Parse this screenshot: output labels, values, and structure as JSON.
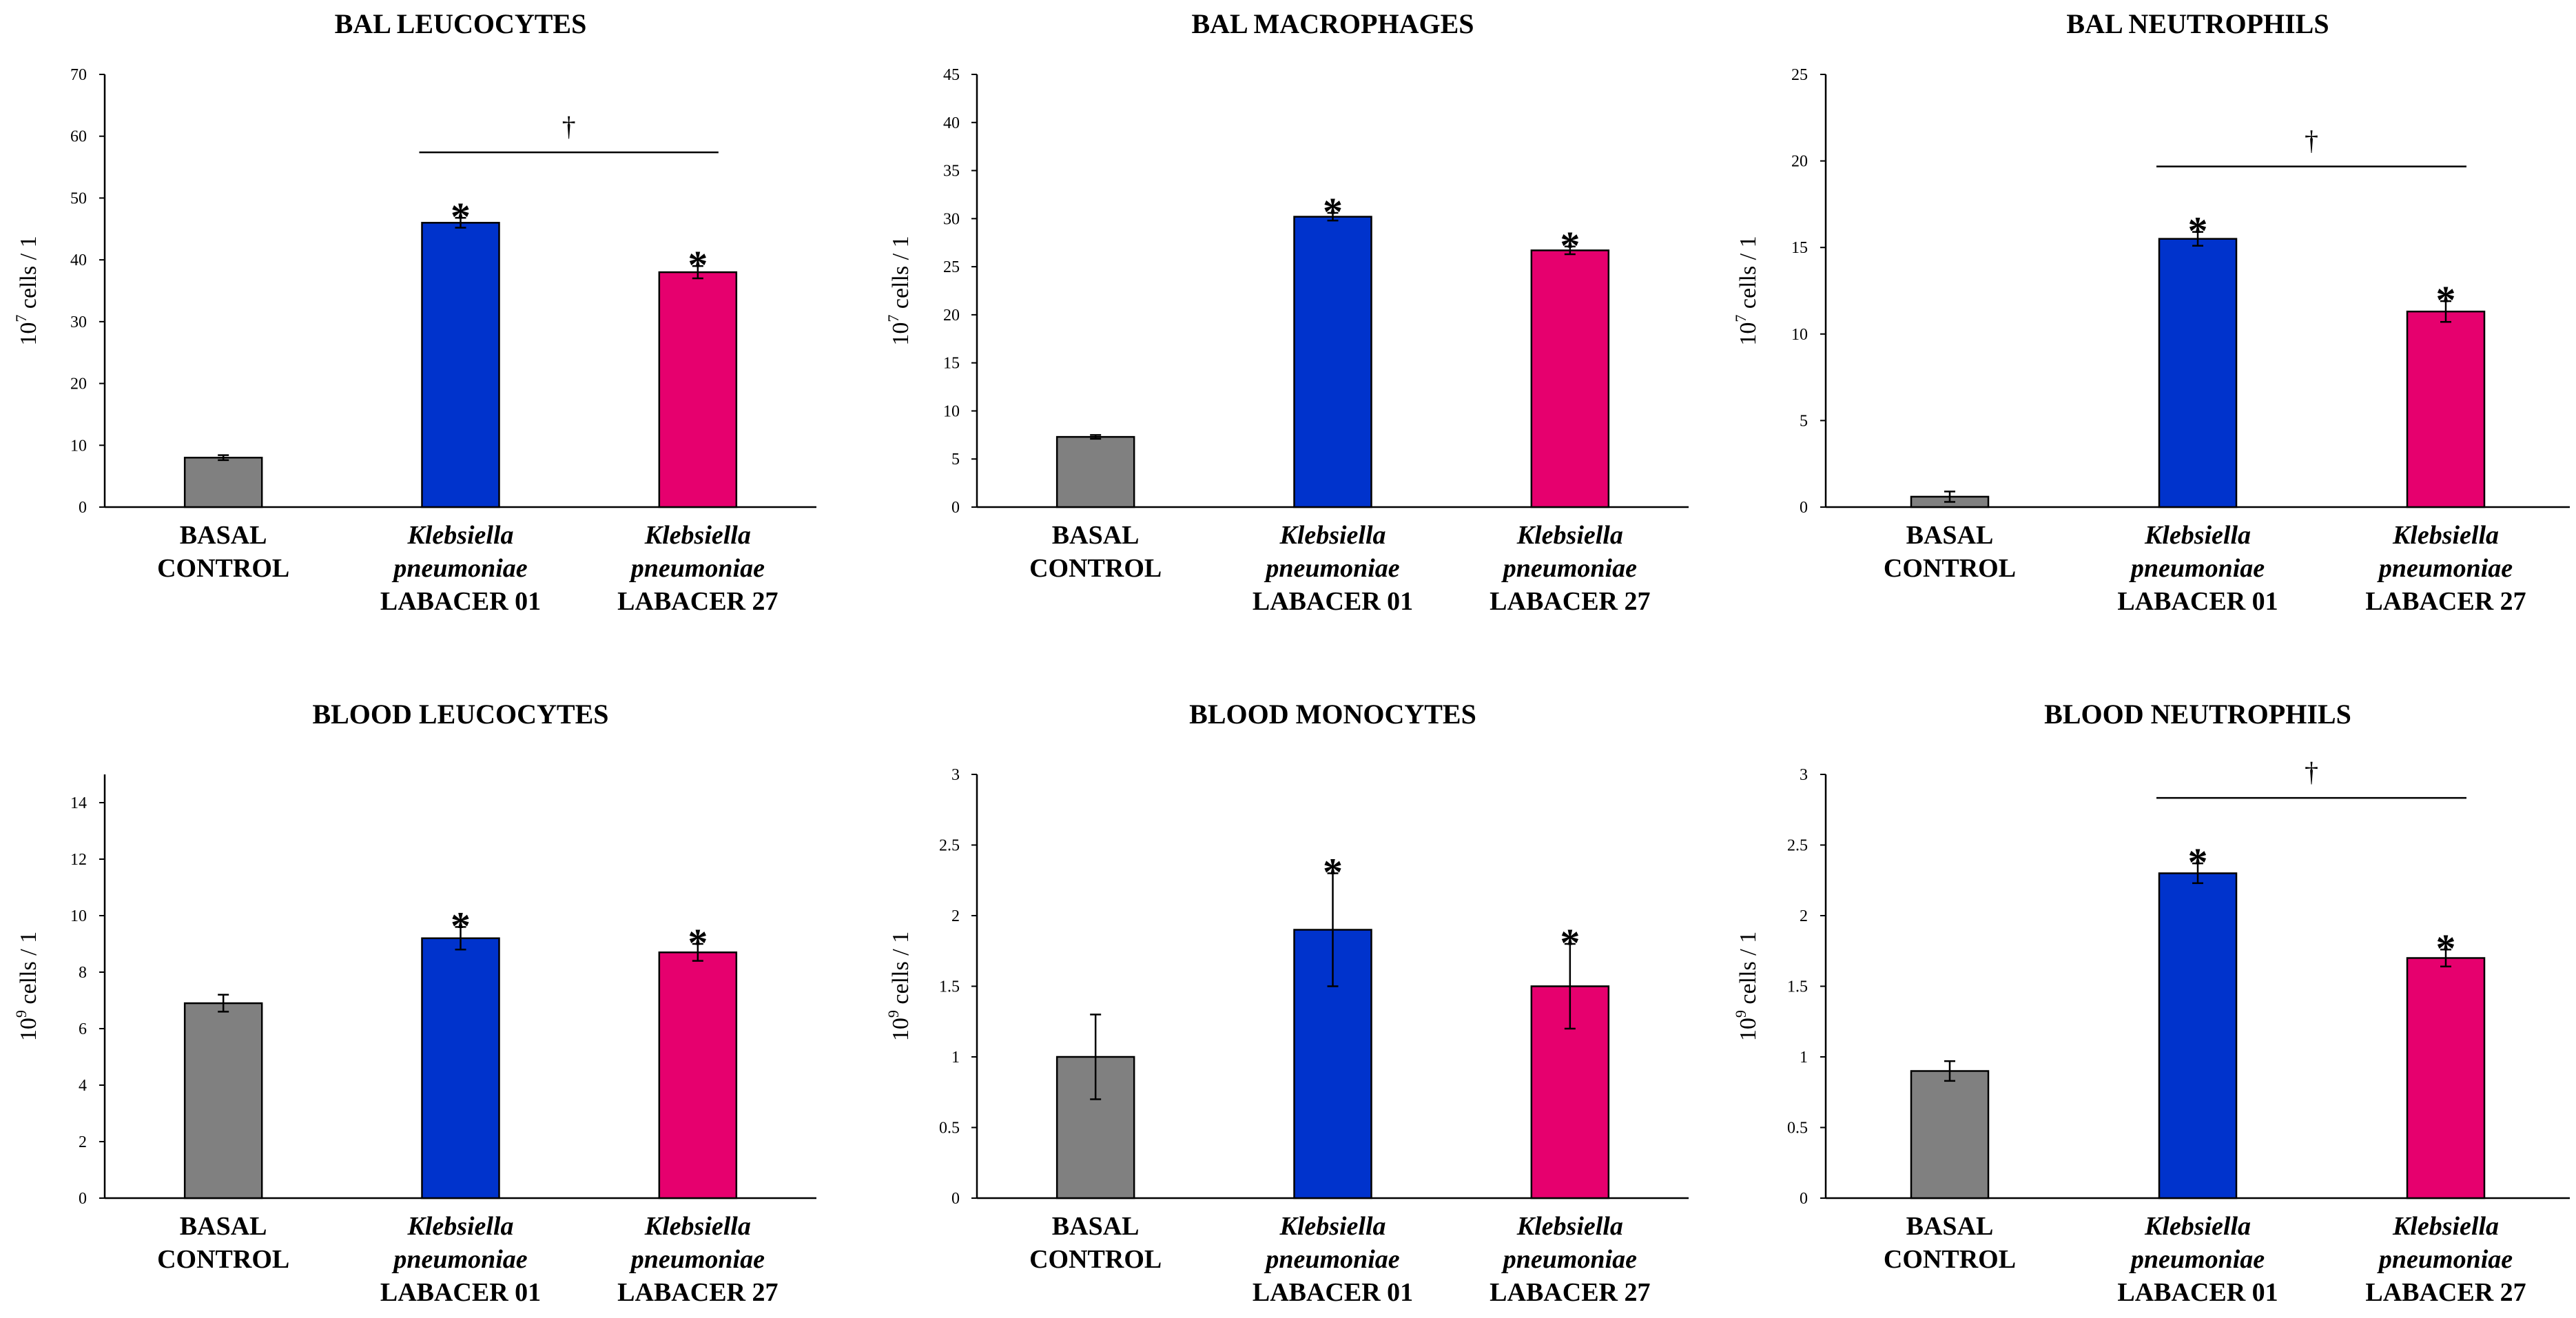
{
  "colors": {
    "basal": "#808080",
    "kp01": "#0033CC",
    "kp27": "#E6006E"
  },
  "category_labels": [
    [
      "BASAL",
      "CONTROL"
    ],
    [
      "Klebsiella",
      "pneumoniae",
      "LABACER 01"
    ],
    [
      "Klebsiella",
      "pneumoniae",
      "LABACER 27"
    ]
  ],
  "ylabel_unit_text": "cells / 1",
  "chart_data": [
    {
      "type": "bar",
      "title": "BAL LEUCOCYTES",
      "ylabel": "10^7 cells / 1",
      "ylabel_base": "10",
      "ylabel_exp": "7",
      "ylim": [
        0,
        70
      ],
      "yticks": [
        0,
        10,
        20,
        30,
        40,
        50,
        60,
        70
      ],
      "ytick_labels": [
        "0",
        "10",
        "20",
        "30",
        "40",
        "50",
        "60",
        "70"
      ],
      "categories": [
        "BASAL CONTROL",
        "Klebsiella pneumoniae LABACER 01",
        "Klebsiella pneumoniae LABACER 27"
      ],
      "values": [
        8,
        46,
        38
      ],
      "errors": [
        0.4,
        0.8,
        1.0
      ],
      "significance": [
        "",
        "*",
        "*"
      ],
      "comparison_marker": "†"
    },
    {
      "type": "bar",
      "title": "BAL MACROPHAGES",
      "ylabel": "10^7 cells / 1",
      "ylabel_base": "10",
      "ylabel_exp": "7",
      "ylim": [
        0,
        45
      ],
      "yticks": [
        0,
        5,
        10,
        15,
        20,
        25,
        30,
        35,
        40,
        45
      ],
      "ytick_labels": [
        "0",
        "5",
        "10",
        "15",
        "20",
        "25",
        "30",
        "35",
        "40",
        "45"
      ],
      "categories": [
        "BASAL CONTROL",
        "Klebsiella pneumoniae LABACER 01",
        "Klebsiella pneumoniae LABACER 27"
      ],
      "values": [
        7.3,
        30.2,
        26.7
      ],
      "errors": [
        0.2,
        0.4,
        0.4
      ],
      "significance": [
        "",
        "*",
        "*"
      ],
      "comparison_marker": ""
    },
    {
      "type": "bar",
      "title": "BAL NEUTROPHILS",
      "ylabel": "10^7 cells / 1",
      "ylabel_base": "10",
      "ylabel_exp": "7",
      "ylim": [
        0,
        25
      ],
      "yticks": [
        0,
        5,
        10,
        15,
        20,
        25
      ],
      "ytick_labels": [
        "0",
        "5",
        "10",
        "15",
        "20",
        "25"
      ],
      "categories": [
        "BASAL CONTROL",
        "Klebsiella pneumoniae LABACER 01",
        "Klebsiella pneumoniae LABACER 27"
      ],
      "values": [
        0.6,
        15.5,
        11.3
      ],
      "errors": [
        0.3,
        0.4,
        0.6
      ],
      "significance": [
        "",
        "*",
        "*"
      ],
      "comparison_marker": "†"
    },
    {
      "type": "bar",
      "title": "BLOOD LEUCOCYTES",
      "ylabel": "10^9 cells / 1",
      "ylabel_base": "10",
      "ylabel_exp": "9",
      "ylim": [
        0,
        15
      ],
      "yticks": [
        0,
        2,
        4,
        6,
        8,
        10,
        12,
        14
      ],
      "ytick_labels": [
        "0",
        "2",
        "4",
        "6",
        "8",
        "10",
        "12",
        "14"
      ],
      "categories": [
        "BASAL CONTROL",
        "Klebsiella pneumoniae LABACER 01",
        "Klebsiella pneumoniae LABACER 27"
      ],
      "values": [
        6.9,
        9.2,
        8.7
      ],
      "errors": [
        0.3,
        0.4,
        0.3
      ],
      "significance": [
        "",
        "*",
        "*"
      ],
      "comparison_marker": ""
    },
    {
      "type": "bar",
      "title": "BLOOD MONOCYTES",
      "ylabel": "10^9 cells / 1",
      "ylabel_base": "10",
      "ylabel_exp": "9",
      "ylim": [
        0,
        3
      ],
      "yticks": [
        0,
        0.5,
        1,
        1.5,
        2,
        2.5,
        3
      ],
      "ytick_labels": [
        "0",
        "0.5",
        "1",
        "1.5",
        "2",
        "2.5",
        "3"
      ],
      "categories": [
        "BASAL CONTROL",
        "Klebsiella pneumoniae LABACER 01",
        "Klebsiella pneumoniae LABACER 27"
      ],
      "values": [
        1.0,
        1.9,
        1.5
      ],
      "errors": [
        0.3,
        0.4,
        0.3
      ],
      "significance": [
        "",
        "*",
        "*"
      ],
      "comparison_marker": ""
    },
    {
      "type": "bar",
      "title": "BLOOD NEUTROPHILS",
      "ylabel": "10^9 cells / 1",
      "ylabel_base": "10",
      "ylabel_exp": "9",
      "ylim": [
        0,
        3
      ],
      "yticks": [
        0,
        0.5,
        1,
        1.5,
        2,
        2.5,
        3
      ],
      "ytick_labels": [
        "0",
        "0.5",
        "1",
        "1.5",
        "2",
        "2.5",
        "3"
      ],
      "categories": [
        "BASAL CONTROL",
        "Klebsiella pneumoniae LABACER 01",
        "Klebsiella pneumoniae LABACER 27"
      ],
      "values": [
        0.9,
        2.3,
        1.7
      ],
      "errors": [
        0.07,
        0.07,
        0.06
      ],
      "significance": [
        "",
        "*",
        "*"
      ],
      "comparison_marker": "†"
    }
  ]
}
